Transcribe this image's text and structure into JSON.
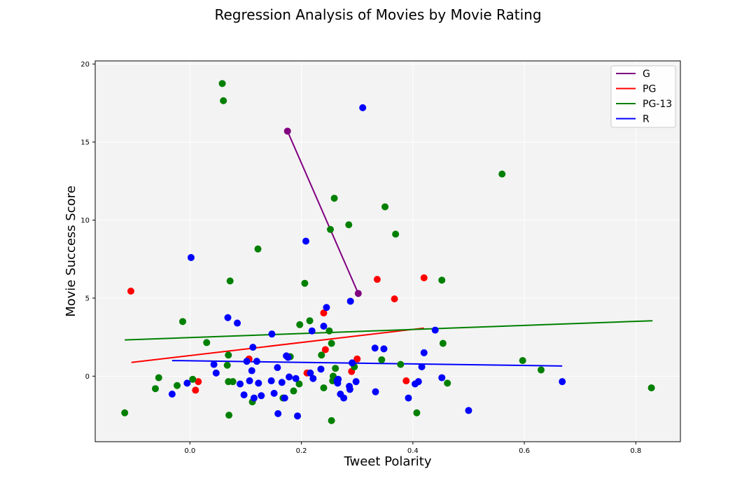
{
  "chart_data": {
    "type": "scatter",
    "title": "Regression Analysis of Movies by Movie Rating",
    "xlabel": "Tweet Polarity",
    "ylabel": "Movie Success Score",
    "xlim": [
      -0.17,
      0.88
    ],
    "ylim": [
      -4.2,
      20.2
    ],
    "xticks": [
      0.0,
      0.2,
      0.4,
      0.6,
      0.8
    ],
    "xtick_labels": [
      "0.0",
      "0.2",
      "0.4",
      "0.6",
      "0.8"
    ],
    "yticks": [
      0,
      5,
      10,
      15,
      20
    ],
    "ytick_labels": [
      "0",
      "5",
      "10",
      "15",
      "20"
    ],
    "grid": true,
    "background": "#f3f3f3",
    "legend_position": "top-right",
    "series": [
      {
        "name": "G",
        "color": "#800080",
        "points": [
          [
            0.175,
            15.7
          ],
          [
            0.302,
            5.3
          ]
        ],
        "regression": [
          [
            0.175,
            15.7
          ],
          [
            0.302,
            5.3
          ]
        ]
      },
      {
        "name": "PG",
        "color": "#ff0000",
        "points": [
          [
            -0.106,
            5.45
          ],
          [
            0.01,
            -0.9
          ],
          [
            0.015,
            -0.35
          ],
          [
            0.106,
            1.1
          ],
          [
            0.24,
            4.05
          ],
          [
            0.243,
            1.7
          ],
          [
            0.21,
            0.2
          ],
          [
            0.29,
            0.3
          ],
          [
            0.3,
            1.1
          ],
          [
            0.336,
            6.2
          ],
          [
            0.367,
            4.95
          ],
          [
            0.388,
            -0.3
          ],
          [
            0.42,
            6.3
          ]
        ],
        "regression": [
          [
            -0.105,
            0.88
          ],
          [
            0.42,
            3.08
          ]
        ]
      },
      {
        "name": "PG-13",
        "color": "#008000",
        "points": [
          [
            -0.117,
            -2.35
          ],
          [
            -0.062,
            -0.8
          ],
          [
            -0.056,
            -0.1
          ],
          [
            -0.023,
            -0.6
          ],
          [
            -0.013,
            3.5
          ],
          [
            0.005,
            -0.2
          ],
          [
            0.03,
            2.15
          ],
          [
            0.058,
            18.75
          ],
          [
            0.06,
            17.65
          ],
          [
            0.067,
            0.7
          ],
          [
            0.069,
            1.35
          ],
          [
            0.069,
            -0.35
          ],
          [
            0.07,
            -2.5
          ],
          [
            0.072,
            6.1
          ],
          [
            0.077,
            -0.35
          ],
          [
            0.122,
            8.15
          ],
          [
            0.112,
            -1.65
          ],
          [
            0.167,
            -1.4
          ],
          [
            0.18,
            1.25
          ],
          [
            0.186,
            -0.95
          ],
          [
            0.196,
            -0.5
          ],
          [
            0.197,
            3.3
          ],
          [
            0.206,
            5.95
          ],
          [
            0.215,
            3.55
          ],
          [
            0.236,
            1.35
          ],
          [
            0.24,
            -0.75
          ],
          [
            0.25,
            2.9
          ],
          [
            0.252,
            9.4
          ],
          [
            0.254,
            2.1
          ],
          [
            0.254,
            -2.85
          ],
          [
            0.256,
            -0.3
          ],
          [
            0.257,
            0.0
          ],
          [
            0.259,
            11.4
          ],
          [
            0.261,
            0.5
          ],
          [
            0.285,
            9.7
          ],
          [
            0.295,
            0.6
          ],
          [
            0.344,
            1.05
          ],
          [
            0.35,
            10.85
          ],
          [
            0.369,
            9.1
          ],
          [
            0.378,
            0.75
          ],
          [
            0.407,
            -2.35
          ],
          [
            0.452,
            6.15
          ],
          [
            0.454,
            2.1
          ],
          [
            0.462,
            -0.45
          ],
          [
            0.56,
            12.95
          ],
          [
            0.597,
            1.0
          ],
          [
            0.63,
            0.4
          ],
          [
            0.828,
            -0.75
          ]
        ],
        "regression": [
          [
            -0.117,
            2.32
          ],
          [
            0.83,
            3.55
          ]
        ]
      },
      {
        "name": "R",
        "color": "#0000ff",
        "points": [
          [
            -0.032,
            -1.15
          ],
          [
            -0.005,
            -0.45
          ],
          [
            0.002,
            7.6
          ],
          [
            0.043,
            0.75
          ],
          [
            0.047,
            0.2
          ],
          [
            0.068,
            3.75
          ],
          [
            0.085,
            3.4
          ],
          [
            0.09,
            -0.5
          ],
          [
            0.097,
            -1.2
          ],
          [
            0.102,
            0.95
          ],
          [
            0.107,
            -0.3
          ],
          [
            0.111,
            0.35
          ],
          [
            0.113,
            1.85
          ],
          [
            0.115,
            -1.4
          ],
          [
            0.12,
            0.95
          ],
          [
            0.123,
            -0.45
          ],
          [
            0.128,
            -1.25
          ],
          [
            0.146,
            -0.3
          ],
          [
            0.147,
            2.7
          ],
          [
            0.151,
            -1.1
          ],
          [
            0.157,
            0.55
          ],
          [
            0.158,
            -2.4
          ],
          [
            0.165,
            -0.4
          ],
          [
            0.17,
            -1.4
          ],
          [
            0.173,
            1.3
          ],
          [
            0.176,
            1.2
          ],
          [
            0.178,
            -0.05
          ],
          [
            0.19,
            -0.15
          ],
          [
            0.193,
            -2.55
          ],
          [
            0.208,
            8.65
          ],
          [
            0.216,
            0.2
          ],
          [
            0.219,
            2.9
          ],
          [
            0.221,
            -0.15
          ],
          [
            0.235,
            0.45
          ],
          [
            0.24,
            3.2
          ],
          [
            0.245,
            4.4
          ],
          [
            0.264,
            -0.3
          ],
          [
            0.265,
            -0.45
          ],
          [
            0.266,
            -0.2
          ],
          [
            0.27,
            -1.15
          ],
          [
            0.276,
            -1.4
          ],
          [
            0.286,
            -0.65
          ],
          [
            0.287,
            -0.85
          ],
          [
            0.288,
            4.8
          ],
          [
            0.291,
            0.85
          ],
          [
            0.298,
            -0.35
          ],
          [
            0.31,
            17.2
          ],
          [
            0.332,
            1.8
          ],
          [
            0.333,
            -1.0
          ],
          [
            0.348,
            1.75
          ],
          [
            0.392,
            -1.4
          ],
          [
            0.404,
            -0.5
          ],
          [
            0.41,
            -0.35
          ],
          [
            0.416,
            0.6
          ],
          [
            0.42,
            1.5
          ],
          [
            0.44,
            2.95
          ],
          [
            0.452,
            -0.1
          ],
          [
            0.5,
            -2.2
          ],
          [
            0.668,
            -0.35
          ]
        ],
        "regression": [
          [
            -0.032,
            1.0
          ],
          [
            0.668,
            0.65
          ]
        ]
      }
    ]
  }
}
